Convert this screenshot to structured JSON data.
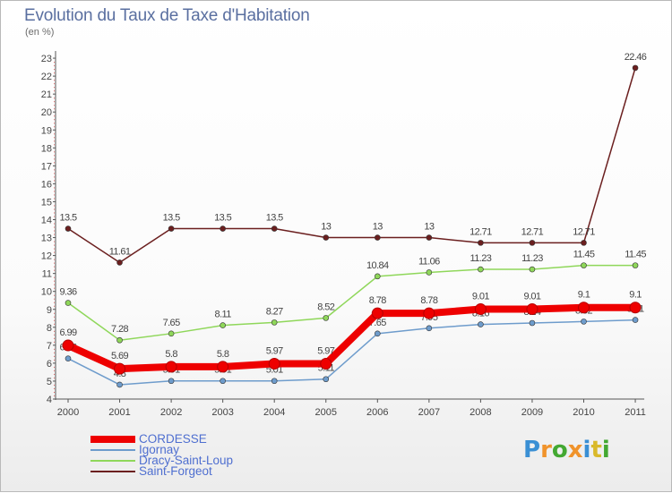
{
  "title": "Evolution du Taux de Taxe d'Habitation",
  "subtitle": "(en %)",
  "brand": {
    "text": "Proxiti",
    "letters": [
      {
        "ch": "P",
        "color": "#3a8fd4"
      },
      {
        "ch": "r",
        "color": "#f0932b"
      },
      {
        "ch": "o",
        "color": "#43a832"
      },
      {
        "ch": "x",
        "color": "#f0932b"
      },
      {
        "ch": "i",
        "color": "#3a8fd4"
      },
      {
        "ch": "t",
        "color": "#d9b92a"
      },
      {
        "ch": "i",
        "color": "#43a832"
      }
    ]
  },
  "chart_data": {
    "type": "line",
    "title": "Evolution du Taux de Taxe d'Habitation",
    "ylabel": "(en %)",
    "xlabel": "",
    "x": [
      "2000",
      "2001",
      "2002",
      "2003",
      "2004",
      "2005",
      "2006",
      "2007",
      "2008",
      "2009",
      "2010",
      "2011"
    ],
    "ylim": [
      4,
      23
    ],
    "yticks": [
      "4",
      "5",
      "6",
      "7",
      "8",
      "9",
      "10",
      "11",
      "12",
      "13",
      "14",
      "15",
      "16",
      "17",
      "18",
      "19",
      "20",
      "21",
      "22",
      "23"
    ],
    "legend_position": "bottom-left",
    "grid": false,
    "series": [
      {
        "name": "Saint-Forgeot",
        "color": "#6b1f1f",
        "values": [
          13.5,
          11.61,
          13.5,
          13.5,
          13.5,
          13,
          13,
          13,
          12.71,
          12.71,
          12.71,
          22.46
        ],
        "labels": [
          "13.5",
          "11.61",
          "13.5",
          "13.5",
          "13.5",
          "13",
          "13",
          "13",
          "12.71",
          "12.71",
          "12.71",
          "22.46"
        ]
      },
      {
        "name": "Dracy-Saint-Loup",
        "color": "#8fd75a",
        "values": [
          9.36,
          7.28,
          7.65,
          8.11,
          8.27,
          8.52,
          10.84,
          11.06,
          11.23,
          11.23,
          11.45,
          11.45
        ],
        "labels": [
          "9.36",
          "7.28",
          "7.65",
          "8.11",
          "8.27",
          "8.52",
          "10.84",
          "11.06",
          "11.23",
          "11.23",
          "11.45",
          "11.45"
        ]
      },
      {
        "name": "Igornay",
        "color": "#6e9ccc",
        "values": [
          6.26,
          4.8,
          5.01,
          5.01,
          5.01,
          5.11,
          7.65,
          7.95,
          8.16,
          8.24,
          8.32,
          8.41
        ],
        "labels": [
          "6.26",
          "4.8",
          "5.01",
          "5.01",
          "5.01",
          "5.11",
          "7.65",
          "7.95",
          "8.16",
          "8.24",
          "8.32",
          "8.41"
        ]
      },
      {
        "name": "CORDESSE",
        "color": "#ee0000",
        "values": [
          6.99,
          5.69,
          5.8,
          5.8,
          5.97,
          5.97,
          8.78,
          8.78,
          9.01,
          9.01,
          9.1,
          9.1
        ],
        "labels": [
          "6.99",
          "5.69",
          "5.8",
          "5.8",
          "5.97",
          "5.97",
          "8.78",
          "8.78",
          "9.01",
          "9.01",
          "9.1",
          "9.1"
        ]
      }
    ]
  },
  "legend": [
    {
      "name": "CORDESSE",
      "color": "#ee0000",
      "thickness": 8
    },
    {
      "name": "Igornay",
      "color": "#6e9ccc",
      "thickness": 2
    },
    {
      "name": "Dracy-Saint-Loup",
      "color": "#8fd75a",
      "thickness": 2
    },
    {
      "name": "Saint-Forgeot",
      "color": "#6b1f1f",
      "thickness": 2
    }
  ]
}
